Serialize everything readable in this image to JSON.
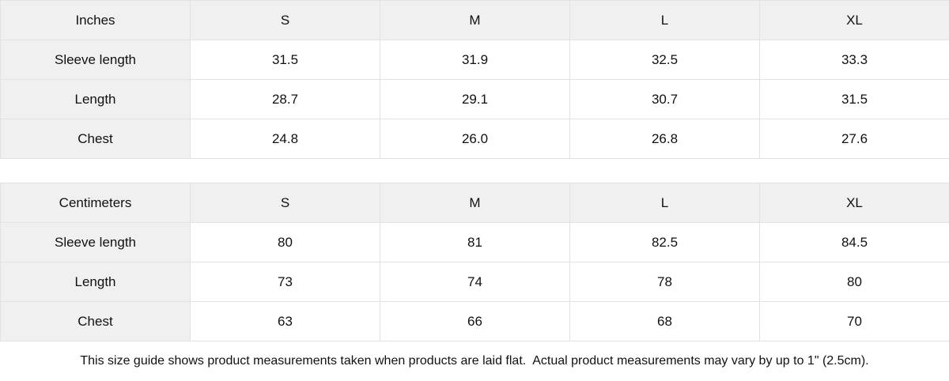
{
  "colors": {
    "header_background": "#f0f0f0",
    "label_column_background": "#f0f0f0",
    "cell_background": "#ffffff",
    "border": "#e2e2e2",
    "text": "#111111"
  },
  "tables": [
    {
      "unit_label": "Inches",
      "size_headers": [
        "S",
        "M",
        "L",
        "XL"
      ],
      "rows": [
        {
          "label": "Sleeve length",
          "values": [
            "31.5",
            "31.9",
            "32.5",
            "33.3"
          ]
        },
        {
          "label": "Length",
          "values": [
            "28.7",
            "29.1",
            "30.7",
            "31.5"
          ]
        },
        {
          "label": "Chest",
          "values": [
            "24.8",
            "26.0",
            "26.8",
            "27.6"
          ]
        }
      ]
    },
    {
      "unit_label": "Centimeters",
      "size_headers": [
        "S",
        "M",
        "L",
        "XL"
      ],
      "rows": [
        {
          "label": "Sleeve length",
          "values": [
            "80",
            "81",
            "82.5",
            "84.5"
          ]
        },
        {
          "label": "Length",
          "values": [
            "73",
            "74",
            "78",
            "80"
          ]
        },
        {
          "label": "Chest",
          "values": [
            "63",
            "66",
            "68",
            "70"
          ]
        }
      ]
    }
  ],
  "footer": {
    "note": "This size guide shows product measurements taken when products are laid flat.  Actual product measurements may vary by up to 1\" (2.5cm)."
  },
  "chart_data": [
    {
      "type": "table",
      "title": "Inches",
      "columns": [
        "Inches",
        "S",
        "M",
        "L",
        "XL"
      ],
      "rows": [
        [
          "Sleeve length",
          31.5,
          31.9,
          32.5,
          33.3
        ],
        [
          "Length",
          28.7,
          29.1,
          30.7,
          31.5
        ],
        [
          "Chest",
          24.8,
          26.0,
          26.8,
          27.6
        ]
      ]
    },
    {
      "type": "table",
      "title": "Centimeters",
      "columns": [
        "Centimeters",
        "S",
        "M",
        "L",
        "XL"
      ],
      "rows": [
        [
          "Sleeve length",
          80,
          81,
          82.5,
          84.5
        ],
        [
          "Length",
          73,
          74,
          78,
          80
        ],
        [
          "Chest",
          63,
          66,
          68,
          70
        ]
      ]
    }
  ]
}
